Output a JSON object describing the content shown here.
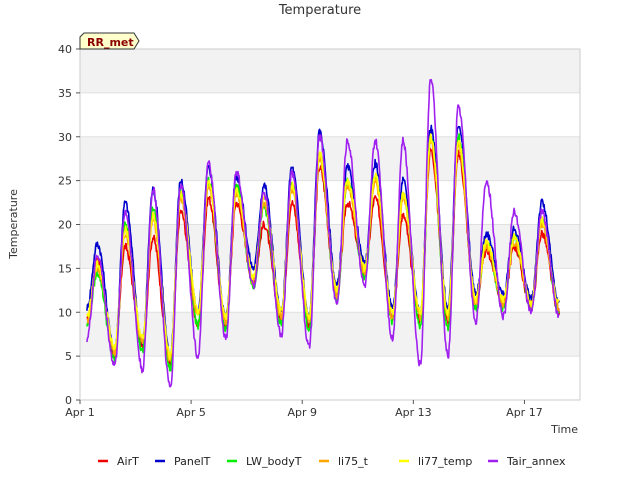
{
  "chart_data": {
    "type": "line",
    "title": "Temperature",
    "xlabel": "Time",
    "ylabel": "Temperature",
    "station_label": "RR_met",
    "ylim": [
      0,
      40
    ],
    "y_ticks": [
      0,
      5,
      10,
      15,
      20,
      25,
      30,
      35,
      40
    ],
    "xlim": [
      "2024-04-01T00:00",
      "2024-04-19T00:00"
    ],
    "x_ticks": [
      {
        "label": "Apr 1",
        "day": 1
      },
      {
        "label": "Apr 5",
        "day": 5
      },
      {
        "label": "Apr 9",
        "day": 9
      },
      {
        "label": "Apr 13",
        "day": 13
      },
      {
        "label": "Apr 17",
        "day": 17
      }
    ],
    "grid": true,
    "band_shading": "alternating horizontal bands",
    "legend_position": "bottom",
    "daily_lows": [
      {
        "date": "Apr 1",
        "AirT": 9.0,
        "PanelT": 10.5,
        "LW_bodyT": 8.5,
        "li75_t": 9.0,
        "li77_temp": 9.5,
        "Tair_annex": 7.0
      },
      {
        "date": "Apr 2",
        "AirT": 5.0,
        "PanelT": 5.5,
        "LW_bodyT": 4.5,
        "li75_t": 5.5,
        "li77_temp": 6.0,
        "Tair_annex": 4.0
      },
      {
        "date": "Apr 3",
        "AirT": 6.0,
        "PanelT": 6.5,
        "LW_bodyT": 5.5,
        "li75_t": 6.5,
        "li77_temp": 7.0,
        "Tair_annex": 3.5
      },
      {
        "date": "Apr 4",
        "AirT": 4.0,
        "PanelT": 5.0,
        "LW_bodyT": 3.5,
        "li75_t": 4.5,
        "li77_temp": 5.0,
        "Tair_annex": 1.5
      },
      {
        "date": "Apr 5",
        "AirT": 8.5,
        "PanelT": 10.0,
        "LW_bodyT": 8.5,
        "li75_t": 9.5,
        "li77_temp": 10.0,
        "Tair_annex": 5.0
      },
      {
        "date": "Apr 6",
        "AirT": 8.5,
        "PanelT": 9.5,
        "LW_bodyT": 8.0,
        "li75_t": 9.0,
        "li77_temp": 9.5,
        "Tair_annex": 7.0
      },
      {
        "date": "Apr 7",
        "AirT": 13.5,
        "PanelT": 15.0,
        "LW_bodyT": 13.0,
        "li75_t": 13.5,
        "li77_temp": 14.0,
        "Tair_annex": 13.0
      },
      {
        "date": "Apr 8",
        "AirT": 9.0,
        "PanelT": 10.0,
        "LW_bodyT": 8.5,
        "li75_t": 9.5,
        "li77_temp": 10.0,
        "Tair_annex": 7.5
      },
      {
        "date": "Apr 9",
        "AirT": 8.5,
        "PanelT": 9.5,
        "LW_bodyT": 8.0,
        "li75_t": 9.0,
        "li77_temp": 9.5,
        "Tair_annex": 6.0
      },
      {
        "date": "Apr 10",
        "AirT": 12.0,
        "PanelT": 13.0,
        "LW_bodyT": 11.5,
        "li75_t": 12.0,
        "li77_temp": 12.5,
        "Tair_annex": 11.0
      },
      {
        "date": "Apr 11",
        "AirT": 14.5,
        "PanelT": 15.5,
        "LW_bodyT": 14.0,
        "li75_t": 14.5,
        "li77_temp": 15.0,
        "Tair_annex": 13.0
      },
      {
        "date": "Apr 12",
        "AirT": 9.5,
        "PanelT": 10.5,
        "LW_bodyT": 9.0,
        "li75_t": 9.5,
        "li77_temp": 10.0,
        "Tair_annex": 7.0
      },
      {
        "date": "Apr 13",
        "AirT": 9.0,
        "PanelT": 10.0,
        "LW_bodyT": 8.5,
        "li75_t": 9.5,
        "li77_temp": 10.0,
        "Tair_annex": 4.0
      },
      {
        "date": "Apr 14",
        "AirT": 9.0,
        "PanelT": 10.5,
        "LW_bodyT": 8.0,
        "li75_t": 9.5,
        "li77_temp": 10.0,
        "Tair_annex": 5.0
      },
      {
        "date": "Apr 15",
        "AirT": 11.0,
        "PanelT": 12.0,
        "LW_bodyT": 10.5,
        "li75_t": 11.0,
        "li77_temp": 11.5,
        "Tair_annex": 9.0
      },
      {
        "date": "Apr 16",
        "AirT": 11.0,
        "PanelT": 12.0,
        "LW_bodyT": 10.5,
        "li75_t": 11.0,
        "li77_temp": 11.5,
        "Tair_annex": 9.5
      },
      {
        "date": "Apr 17",
        "AirT": 10.5,
        "PanelT": 11.5,
        "LW_bodyT": 10.5,
        "li75_t": 11.0,
        "li77_temp": 11.0,
        "Tair_annex": 10.0
      },
      {
        "date": "Apr 18",
        "AirT": 10.0,
        "PanelT": 11.0,
        "LW_bodyT": 10.0,
        "li75_t": 10.5,
        "li77_temp": 11.0,
        "Tair_annex": 9.5
      }
    ],
    "daily_highs": [
      {
        "date": "Apr 1",
        "AirT": 16.0,
        "PanelT": 17.8,
        "LW_bodyT": 14.5,
        "li75_t": 15.0,
        "li77_temp": 15.5,
        "Tair_annex": 16.5
      },
      {
        "date": "Apr 2",
        "AirT": 17.5,
        "PanelT": 22.5,
        "LW_bodyT": 20.0,
        "li75_t": 19.0,
        "li77_temp": 19.5,
        "Tair_annex": 21.5
      },
      {
        "date": "Apr 3",
        "AirT": 18.5,
        "PanelT": 24.0,
        "LW_bodyT": 22.0,
        "li75_t": 20.5,
        "li77_temp": 21.0,
        "Tair_annex": 24.0
      },
      {
        "date": "Apr 4",
        "AirT": 21.5,
        "PanelT": 25.0,
        "LW_bodyT": 23.5,
        "li75_t": 23.0,
        "li77_temp": 23.5,
        "Tair_annex": 24.5
      },
      {
        "date": "Apr 5",
        "AirT": 23.0,
        "PanelT": 26.5,
        "LW_bodyT": 25.0,
        "li75_t": 24.5,
        "li77_temp": 25.0,
        "Tair_annex": 27.0
      },
      {
        "date": "Apr 6",
        "AirT": 22.5,
        "PanelT": 25.5,
        "LW_bodyT": 24.5,
        "li75_t": 23.5,
        "li77_temp": 24.0,
        "Tair_annex": 26.0
      },
      {
        "date": "Apr 7",
        "AirT": 20.0,
        "PanelT": 24.5,
        "LW_bodyT": 22.0,
        "li75_t": 22.5,
        "li77_temp": 23.0,
        "Tair_annex": 23.5
      },
      {
        "date": "Apr 8",
        "AirT": 22.5,
        "PanelT": 26.5,
        "LW_bodyT": 24.5,
        "li75_t": 24.0,
        "li77_temp": 24.5,
        "Tair_annex": 26.0
      },
      {
        "date": "Apr 9",
        "AirT": 26.5,
        "PanelT": 30.5,
        "LW_bodyT": 28.0,
        "li75_t": 27.5,
        "li77_temp": 28.0,
        "Tair_annex": 30.0
      },
      {
        "date": "Apr 10",
        "AirT": 22.5,
        "PanelT": 26.5,
        "LW_bodyT": 25.0,
        "li75_t": 24.5,
        "li77_temp": 25.0,
        "Tair_annex": 29.5
      },
      {
        "date": "Apr 11",
        "AirT": 23.0,
        "PanelT": 27.0,
        "LW_bodyT": 25.5,
        "li75_t": 25.0,
        "li77_temp": 25.5,
        "Tair_annex": 29.5
      },
      {
        "date": "Apr 12",
        "AirT": 21.0,
        "PanelT": 25.0,
        "LW_bodyT": 23.5,
        "li75_t": 23.0,
        "li77_temp": 23.5,
        "Tair_annex": 29.5
      },
      {
        "date": "Apr 13",
        "AirT": 28.5,
        "PanelT": 31.0,
        "LW_bodyT": 30.0,
        "li75_t": 29.5,
        "li77_temp": 30.0,
        "Tair_annex": 36.5
      },
      {
        "date": "Apr 14",
        "AirT": 28.0,
        "PanelT": 31.5,
        "LW_bodyT": 30.0,
        "li75_t": 29.0,
        "li77_temp": 29.5,
        "Tair_annex": 33.5
      },
      {
        "date": "Apr 15",
        "AirT": 17.0,
        "PanelT": 19.0,
        "LW_bodyT": 18.0,
        "li75_t": 17.5,
        "li77_temp": 18.0,
        "Tair_annex": 25.0
      },
      {
        "date": "Apr 16",
        "AirT": 17.5,
        "PanelT": 19.5,
        "LW_bodyT": 18.5,
        "li75_t": 18.0,
        "li77_temp": 18.5,
        "Tair_annex": 21.5
      },
      {
        "date": "Apr 17",
        "AirT": 19.0,
        "PanelT": 22.5,
        "LW_bodyT": 20.5,
        "li75_t": 20.0,
        "li77_temp": 20.5,
        "Tair_annex": 21.5
      }
    ],
    "peak_hour": 15,
    "trough_hour": 6,
    "series": [
      {
        "name": "AirT",
        "color": "#ee0000"
      },
      {
        "name": "PanelT",
        "color": "#0000cc"
      },
      {
        "name": "LW_bodyT",
        "color": "#00ee00"
      },
      {
        "name": "li75_t",
        "color": "#ffa500"
      },
      {
        "name": "li77_temp",
        "color": "#ffff00"
      },
      {
        "name": "Tair_annex",
        "color": "#a020f0"
      }
    ]
  }
}
